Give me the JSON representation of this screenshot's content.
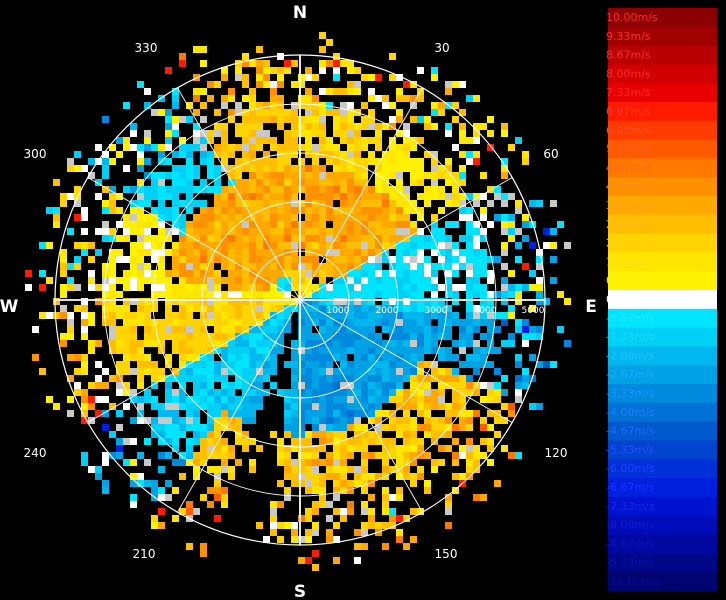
{
  "chart_data": {
    "type": "heatmap",
    "projection": "polar-ppi",
    "quantity": "radial velocity",
    "cardinal_labels": {
      "north": "N",
      "east": "E",
      "south": "S",
      "west": "W"
    },
    "bearing_labels": [
      "30",
      "60",
      "120",
      "150",
      "210",
      "240",
      "300",
      "330"
    ],
    "range_labels": [
      "1000",
      "2000",
      "3000",
      "4000",
      "5000"
    ],
    "range_max": 5000,
    "grid": true,
    "legend_position": "right",
    "colorbar": [
      {
        "label": "10.00m/s",
        "value": 10.0,
        "color": "#8b0000",
        "text": "#ff2a2a"
      },
      {
        "label": "9.33m/s",
        "value": 9.33,
        "color": "#a00000",
        "text": "#ff2a2a"
      },
      {
        "label": "8.67m/s",
        "value": 8.67,
        "color": "#b80000",
        "text": "#ff2a2a"
      },
      {
        "label": "8.00m/s",
        "value": 8.0,
        "color": "#d00000",
        "text": "#ff2a2a"
      },
      {
        "label": "7.33m/s",
        "value": 7.33,
        "color": "#e80000",
        "text": "#ff2a2a"
      },
      {
        "label": "6.67m/s",
        "value": 6.67,
        "color": "#ff1a00",
        "text": "#ff3a2a"
      },
      {
        "label": "6.00m/s",
        "value": 6.0,
        "color": "#ff3c00",
        "text": "#ff4a2a"
      },
      {
        "label": "5.33m/s",
        "value": 5.33,
        "color": "#ff5a00",
        "text": "#ff5a2a"
      },
      {
        "label": "4.67m/s",
        "value": 4.67,
        "color": "#ff7800",
        "text": "#ff6a1a"
      },
      {
        "label": "4.00m/s",
        "value": 4.0,
        "color": "#ff9000",
        "text": "#ff8a1a"
      },
      {
        "label": "3.33m/s",
        "value": 3.33,
        "color": "#ffa800",
        "text": "#ffa01a"
      },
      {
        "label": "2.67m/s",
        "value": 2.67,
        "color": "#ffbe00",
        "text": "#ffb81a"
      },
      {
        "label": "2.00m/s",
        "value": 2.0,
        "color": "#ffd400",
        "text": "#ffcc1a"
      },
      {
        "label": "1.33m/s",
        "value": 1.33,
        "color": "#ffe600",
        "text": "#ffdd1a"
      },
      {
        "label": "0.67m/s",
        "value": 0.67,
        "color": "#fff200",
        "text": "#ffee1a"
      },
      {
        "label": "0.00m/s",
        "value": 0.0,
        "color": "#ffffff",
        "text": "#ffffff"
      },
      {
        "label": "-0.67m/s",
        "value": -0.67,
        "color": "#00e5ff",
        "text": "#22e8ff"
      },
      {
        "label": "-1.33m/s",
        "value": -1.33,
        "color": "#00d0f5",
        "text": "#22d4ff"
      },
      {
        "label": "-2.00m/s",
        "value": -2.0,
        "color": "#00b8ee",
        "text": "#22c0ff"
      },
      {
        "label": "-2.67m/s",
        "value": -2.67,
        "color": "#00a2e6",
        "text": "#22a8ff"
      },
      {
        "label": "-3.33m/s",
        "value": -3.33,
        "color": "#008ade",
        "text": "#2292ff"
      },
      {
        "label": "-4.00m/s",
        "value": -4.0,
        "color": "#0072d6",
        "text": "#227cff"
      },
      {
        "label": "-4.67m/s",
        "value": -4.67,
        "color": "#005ace",
        "text": "#2266ff"
      },
      {
        "label": "-5.33m/s",
        "value": -5.33,
        "color": "#0044d0",
        "text": "#2250ff"
      },
      {
        "label": "-6.00m/s",
        "value": -6.0,
        "color": "#0030d8",
        "text": "#2240ff"
      },
      {
        "label": "-6.67m/s",
        "value": -6.67,
        "color": "#0020e0",
        "text": "#2230ff"
      },
      {
        "label": "-7.33m/s",
        "value": -7.33,
        "color": "#0014d0",
        "text": "#1a24f0"
      },
      {
        "label": "-8.00m/s",
        "value": -8.0,
        "color": "#000cb8",
        "text": "#141ad8"
      },
      {
        "label": "-8.67m/s",
        "value": -8.67,
        "color": "#0008a0",
        "text": "#0e12c0"
      },
      {
        "label": "-9.33m/s",
        "value": -9.33,
        "color": "#000688",
        "text": "#0a0ea8"
      },
      {
        "label": "-10.00m/s",
        "value": -10.0,
        "color": "#000470",
        "text": "#080a90"
      }
    ],
    "velocity_field_by_bearing": [
      {
        "from_deg": 0,
        "to_deg": 30,
        "value": 1.8
      },
      {
        "from_deg": 30,
        "to_deg": 60,
        "value": 1.0
      },
      {
        "from_deg": 60,
        "to_deg": 95,
        "value": -0.7
      },
      {
        "from_deg": 95,
        "to_deg": 120,
        "value": -2.5
      },
      {
        "from_deg": 120,
        "to_deg": 150,
        "value": -2.8
      },
      {
        "from_deg": 150,
        "to_deg": 180,
        "value": -3.0
      },
      {
        "from_deg": 180,
        "to_deg": 210,
        "value": -2.2
      },
      {
        "from_deg": 210,
        "to_deg": 240,
        "value": -1.3
      },
      {
        "from_deg": 240,
        "to_deg": 270,
        "value": 2.0
      },
      {
        "from_deg": 270,
        "to_deg": 300,
        "value": 0.7
      },
      {
        "from_deg": 300,
        "to_deg": 330,
        "value": -1.0
      },
      {
        "from_deg": 330,
        "to_deg": 360,
        "value": 2.4
      }
    ],
    "outer_rim_value_south": 2.0,
    "inner_core_value_north": 3.3
  }
}
